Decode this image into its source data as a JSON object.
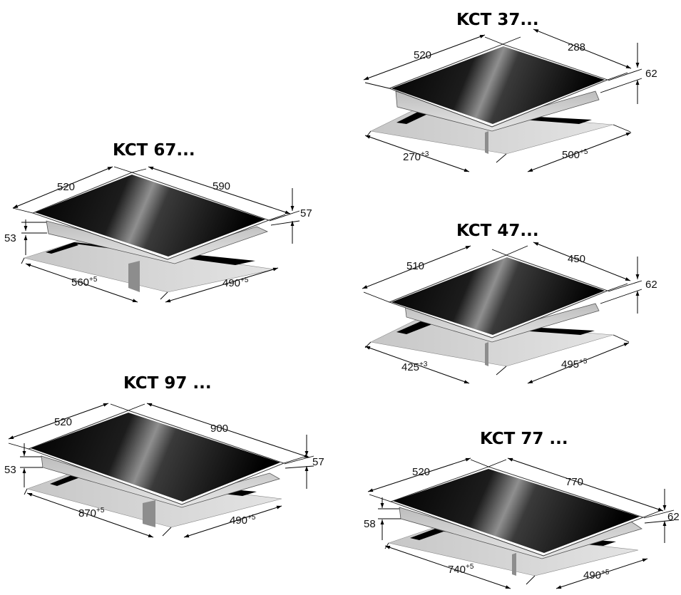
{
  "hobs": [
    {
      "id": "kct67",
      "title": "KCT 67...",
      "depth": "520",
      "width": "590",
      "height": "57",
      "housing_height": "53",
      "cutout_width": "560",
      "cutout_width_tol": "+5",
      "cutout_depth": "490",
      "cutout_depth_tol": "+5"
    },
    {
      "id": "kct97",
      "title": "KCT 97 ...",
      "depth": "520",
      "width": "900",
      "height": "57",
      "housing_height": "53",
      "cutout_width": "870",
      "cutout_width_tol": "+5",
      "cutout_depth": "490",
      "cutout_depth_tol": "+5"
    },
    {
      "id": "kct37",
      "title": "KCT 37...",
      "depth": "520",
      "width": "288",
      "height": "62",
      "cutout_width": "270",
      "cutout_width_tol": "+3",
      "cutout_depth": "500",
      "cutout_depth_tol": "+5"
    },
    {
      "id": "kct47",
      "title": "KCT 47...",
      "depth": "510",
      "width": "450",
      "height": "62",
      "cutout_width": "425",
      "cutout_width_tol": "+3",
      "cutout_depth": "495",
      "cutout_depth_tol": "+5"
    },
    {
      "id": "kct77",
      "title": "KCT 77 ...",
      "depth": "520",
      "width": "770",
      "height": "62",
      "housing_height": "58",
      "cutout_width": "740",
      "cutout_width_tol": "+5",
      "cutout_depth": "490",
      "cutout_depth_tol": "+5"
    }
  ],
  "colors": {
    "glass_dark": "#050505",
    "glass_highlight": "#9a9a9a",
    "housing": "#d9d9d9",
    "cutout_floor": "#d0d0d0",
    "frame": "#ffffff"
  }
}
